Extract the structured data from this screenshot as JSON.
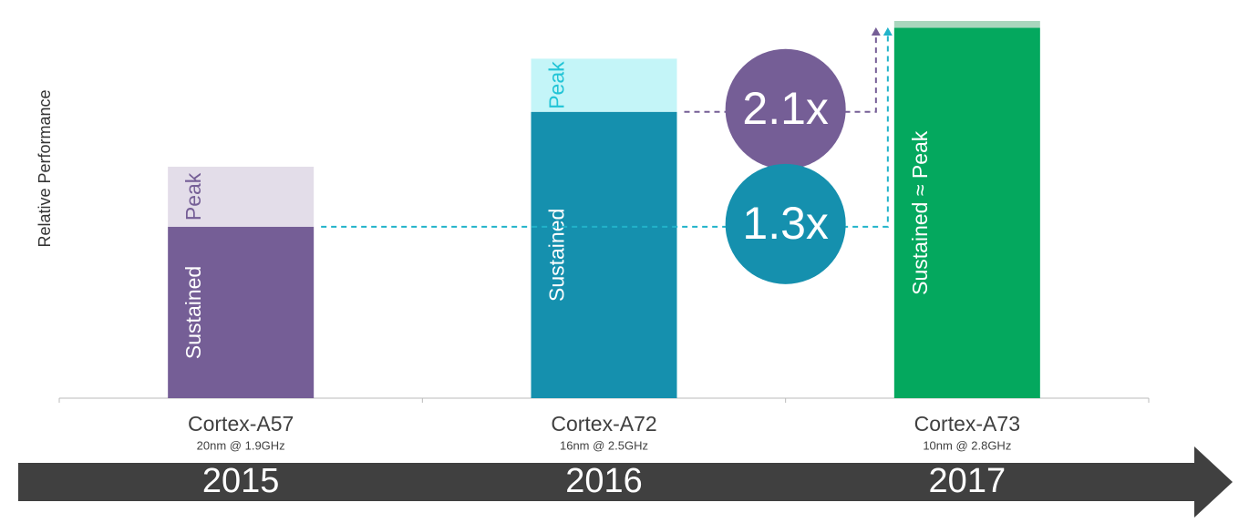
{
  "chart_data": {
    "type": "bar",
    "stacked": true,
    "ylabel": "Relative Performance",
    "categories": [
      "Cortex-A57",
      "Cortex-A72",
      "Cortex-A73"
    ],
    "category_notes": [
      "20nm @ 1.9GHz",
      "16nm @ 2.5GHz",
      "10nm @ 2.8GHz"
    ],
    "years": [
      "2015",
      "2016",
      "2017"
    ],
    "series": [
      {
        "name": "Sustained",
        "colors": [
          "#755e96",
          "#1590ae",
          "#04a85e"
        ],
        "values": [
          1.0,
          1.67,
          2.16
        ]
      },
      {
        "name": "Peak",
        "colors": [
          "#e3dde9",
          "#c4f5f8",
          "#a9d6bd"
        ],
        "values": [
          0.35,
          0.31,
          0.04
        ]
      }
    ],
    "bar_labels": [
      {
        "sustained": "Sustained",
        "peak": "Peak",
        "peak_color": "#755e96"
      },
      {
        "sustained": "Sustained",
        "peak": "Peak",
        "peak_color": "#21c4d6"
      },
      {
        "sustained": "Sustained ≈ Peak"
      }
    ],
    "annotations": [
      {
        "text": "1.3x",
        "color": "#1590ae",
        "line_color": "#21b3c9"
      },
      {
        "text": "2.1x",
        "color": "#755e96",
        "line_color": "#755e96"
      }
    ],
    "ylim": [
      0,
      2.2
    ]
  }
}
